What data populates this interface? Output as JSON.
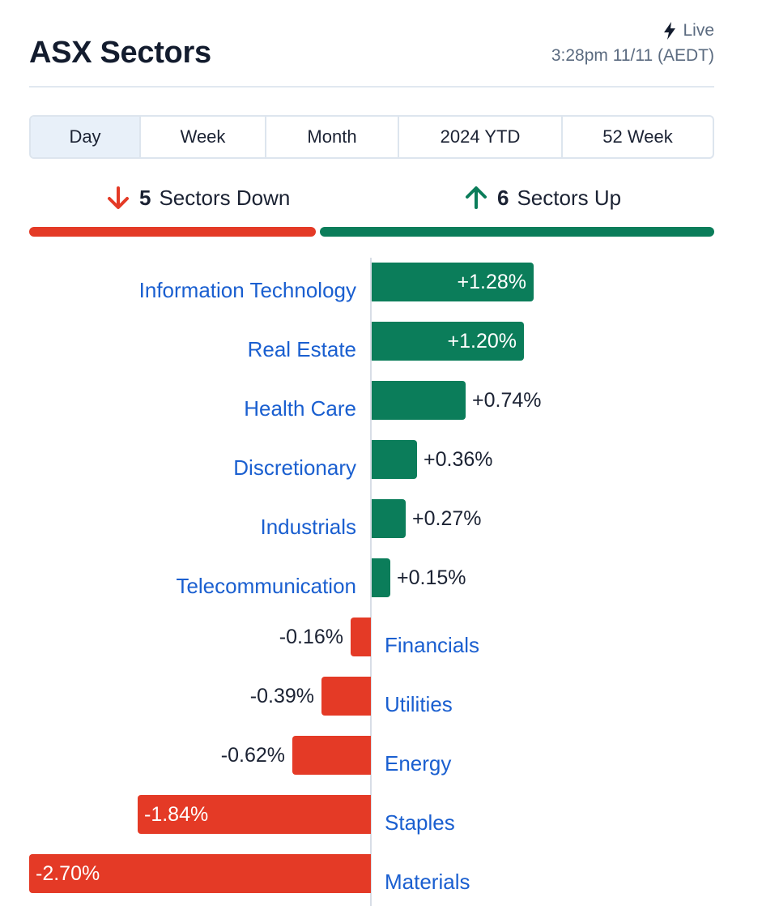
{
  "header": {
    "title": "ASX Sectors",
    "live_label": "Live",
    "timestamp": "3:28pm 11/11 (AEDT)"
  },
  "tabs": [
    {
      "label": "Day",
      "active": true
    },
    {
      "label": "Week",
      "active": false
    },
    {
      "label": "Month",
      "active": false
    },
    {
      "label": "2024 YTD",
      "active": false
    },
    {
      "label": "52 Week",
      "active": false
    }
  ],
  "summary": {
    "down_count": "5",
    "down_label": "Sectors Down",
    "up_count": "6",
    "up_label": "Sectors Up"
  },
  "colors": {
    "up": "#0b7d5a",
    "down": "#e43a26",
    "link": "#1a5fd0"
  },
  "icons": {
    "live": "bolt-icon",
    "down": "arrow-down-icon",
    "up": "arrow-up-icon"
  },
  "chart_data": {
    "type": "bar",
    "orientation": "horizontal-diverging",
    "categories": [
      "Information Technology",
      "Real Estate",
      "Health Care",
      "Discretionary",
      "Industrials",
      "Telecommunication",
      "Financials",
      "Utilities",
      "Energy",
      "Staples",
      "Materials"
    ],
    "values": [
      1.28,
      1.2,
      0.74,
      0.36,
      0.27,
      0.15,
      -0.16,
      -0.39,
      -0.62,
      -1.84,
      -2.7
    ],
    "labels": [
      "+1.28%",
      "+1.20%",
      "+0.74%",
      "+0.36%",
      "+0.27%",
      "+0.15%",
      "-0.16%",
      "-0.39%",
      "-0.62%",
      "-1.84%",
      "-2.70%"
    ]
  }
}
